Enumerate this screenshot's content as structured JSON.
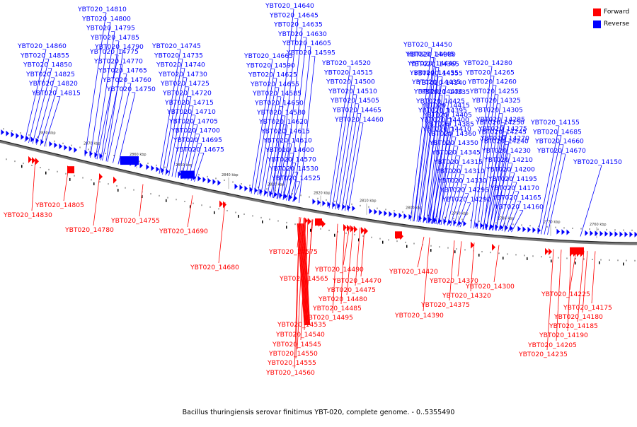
{
  "caption": "Bacillus thuringiensis serovar finitimus YBT-020, complete genome. - 0..5355490",
  "legend": [
    {
      "label": "Forward",
      "color": "#ff0000"
    },
    {
      "label": "Reverse",
      "color": "#0000ff"
    }
  ],
  "colors": {
    "forward": "#ff0000",
    "reverse": "#0000ff",
    "backbone": "#777777"
  },
  "scale_labels": [
    "2880 kbp",
    "2870 kbp",
    "2860 kbp",
    "2850 kbp",
    "2840 kbp",
    "2830 kbp",
    "2820 kbp",
    "2810 kbp",
    "2800 kbp",
    "2790 kbp",
    "2780 kbp",
    "2770 kbp",
    "2760 kbp"
  ],
  "reverse_labels": [
    "YBT020_14810",
    "YBT020_14800",
    "YBT020_14795",
    "YBT020_14785",
    "YBT020_14790",
    "YBT020_14860",
    "YBT020_14855",
    "YBT020_14850",
    "YBT020_14825",
    "YBT020_14820",
    "YBT020_14815",
    "YBT020_14775",
    "YBT020_14770",
    "YBT020_14765",
    "YBT020_14760",
    "YBT020_14750",
    "YBT020_14745",
    "YBT020_14735",
    "YBT020_14740",
    "YBT020_14730",
    "YBT020_14725",
    "YBT020_14720",
    "YBT020_14715",
    "YBT020_14710",
    "YBT020_14705",
    "YBT020_14700",
    "YBT020_14695",
    "YBT020_14675",
    "YBT020_14640",
    "YBT020_14645",
    "YBT020_14635",
    "YBT020_14630",
    "YBT020_14605",
    "YBT020_14595",
    "YBT020_14665",
    "YBT020_14590",
    "YBT020_14625",
    "YBT020_14655",
    "YBT020_14585",
    "YBT020_14650",
    "YBT020_14580",
    "YBT020_14620",
    "YBT020_14615",
    "YBT020_14610",
    "YBT020_14600",
    "YBT020_14570",
    "YBT020_14530",
    "YBT020_14525",
    "YBT020_14520",
    "YBT020_14515",
    "YBT020_14500",
    "YBT020_14510",
    "YBT020_14505",
    "YBT020_14465",
    "YBT020_14460",
    "YBT020_14450",
    "YBT020_14445",
    "YBT020_14440",
    "YBT020_14455",
    "YBT020_14435",
    "YBT020_14430",
    "YBT020_14425",
    "YBT020_14395",
    "YBT020_14400",
    "YBT020_14410",
    "YBT020_14380",
    "YBT020_14365",
    "YBT020_14355",
    "YBT020_14340",
    "YBT020_14335",
    "YBT020_14415",
    "YBT020_14405",
    "YBT020_14385",
    "YBT020_14360",
    "YBT020_14350",
    "YBT020_14345",
    "YBT020_14315",
    "YBT020_14310",
    "YBT020_14330",
    "YBT020_14295",
    "YBT020_14290",
    "YBT020_14280",
    "YBT020_14265",
    "YBT020_14260",
    "YBT020_14255",
    "YBT020_14325",
    "YBT020_14305",
    "YBT020_14285",
    "YBT020_14275",
    "YBT020_14270",
    "YBT020_14250",
    "YBT020_14245",
    "YBT020_14240",
    "YBT020_14230",
    "YBT020_14210",
    "YBT020_14200",
    "YBT020_14195",
    "YBT020_14170",
    "YBT020_14165",
    "YBT020_14160",
    "YBT020_14155",
    "YBT020_14685",
    "YBT020_14660",
    "YBT020_14670",
    "YBT020_14150"
  ],
  "forward_labels": [
    "YBT020_14830",
    "YBT020_14805",
    "YBT020_14780",
    "YBT020_14755",
    "YBT020_14690",
    "YBT020_14680",
    "YBT020_14575",
    "YBT020_14565",
    "YBT020_14490",
    "YBT020_14470",
    "YBT020_14475",
    "YBT020_14480",
    "YBT020_14485",
    "YBT020_14495",
    "YBT020_14535",
    "YBT020_14540",
    "YBT020_14545",
    "YBT020_14550",
    "YBT020_14555",
    "YBT020_14560",
    "YBT020_14420",
    "YBT020_14370",
    "YBT020_14375",
    "YBT020_14390",
    "YBT020_14320",
    "YBT020_14300",
    "YBT020_14225",
    "YBT020_14175",
    "YBT020_14180",
    "YBT020_14185",
    "YBT020_14190",
    "YBT020_14205",
    "YBT020_14235"
  ]
}
